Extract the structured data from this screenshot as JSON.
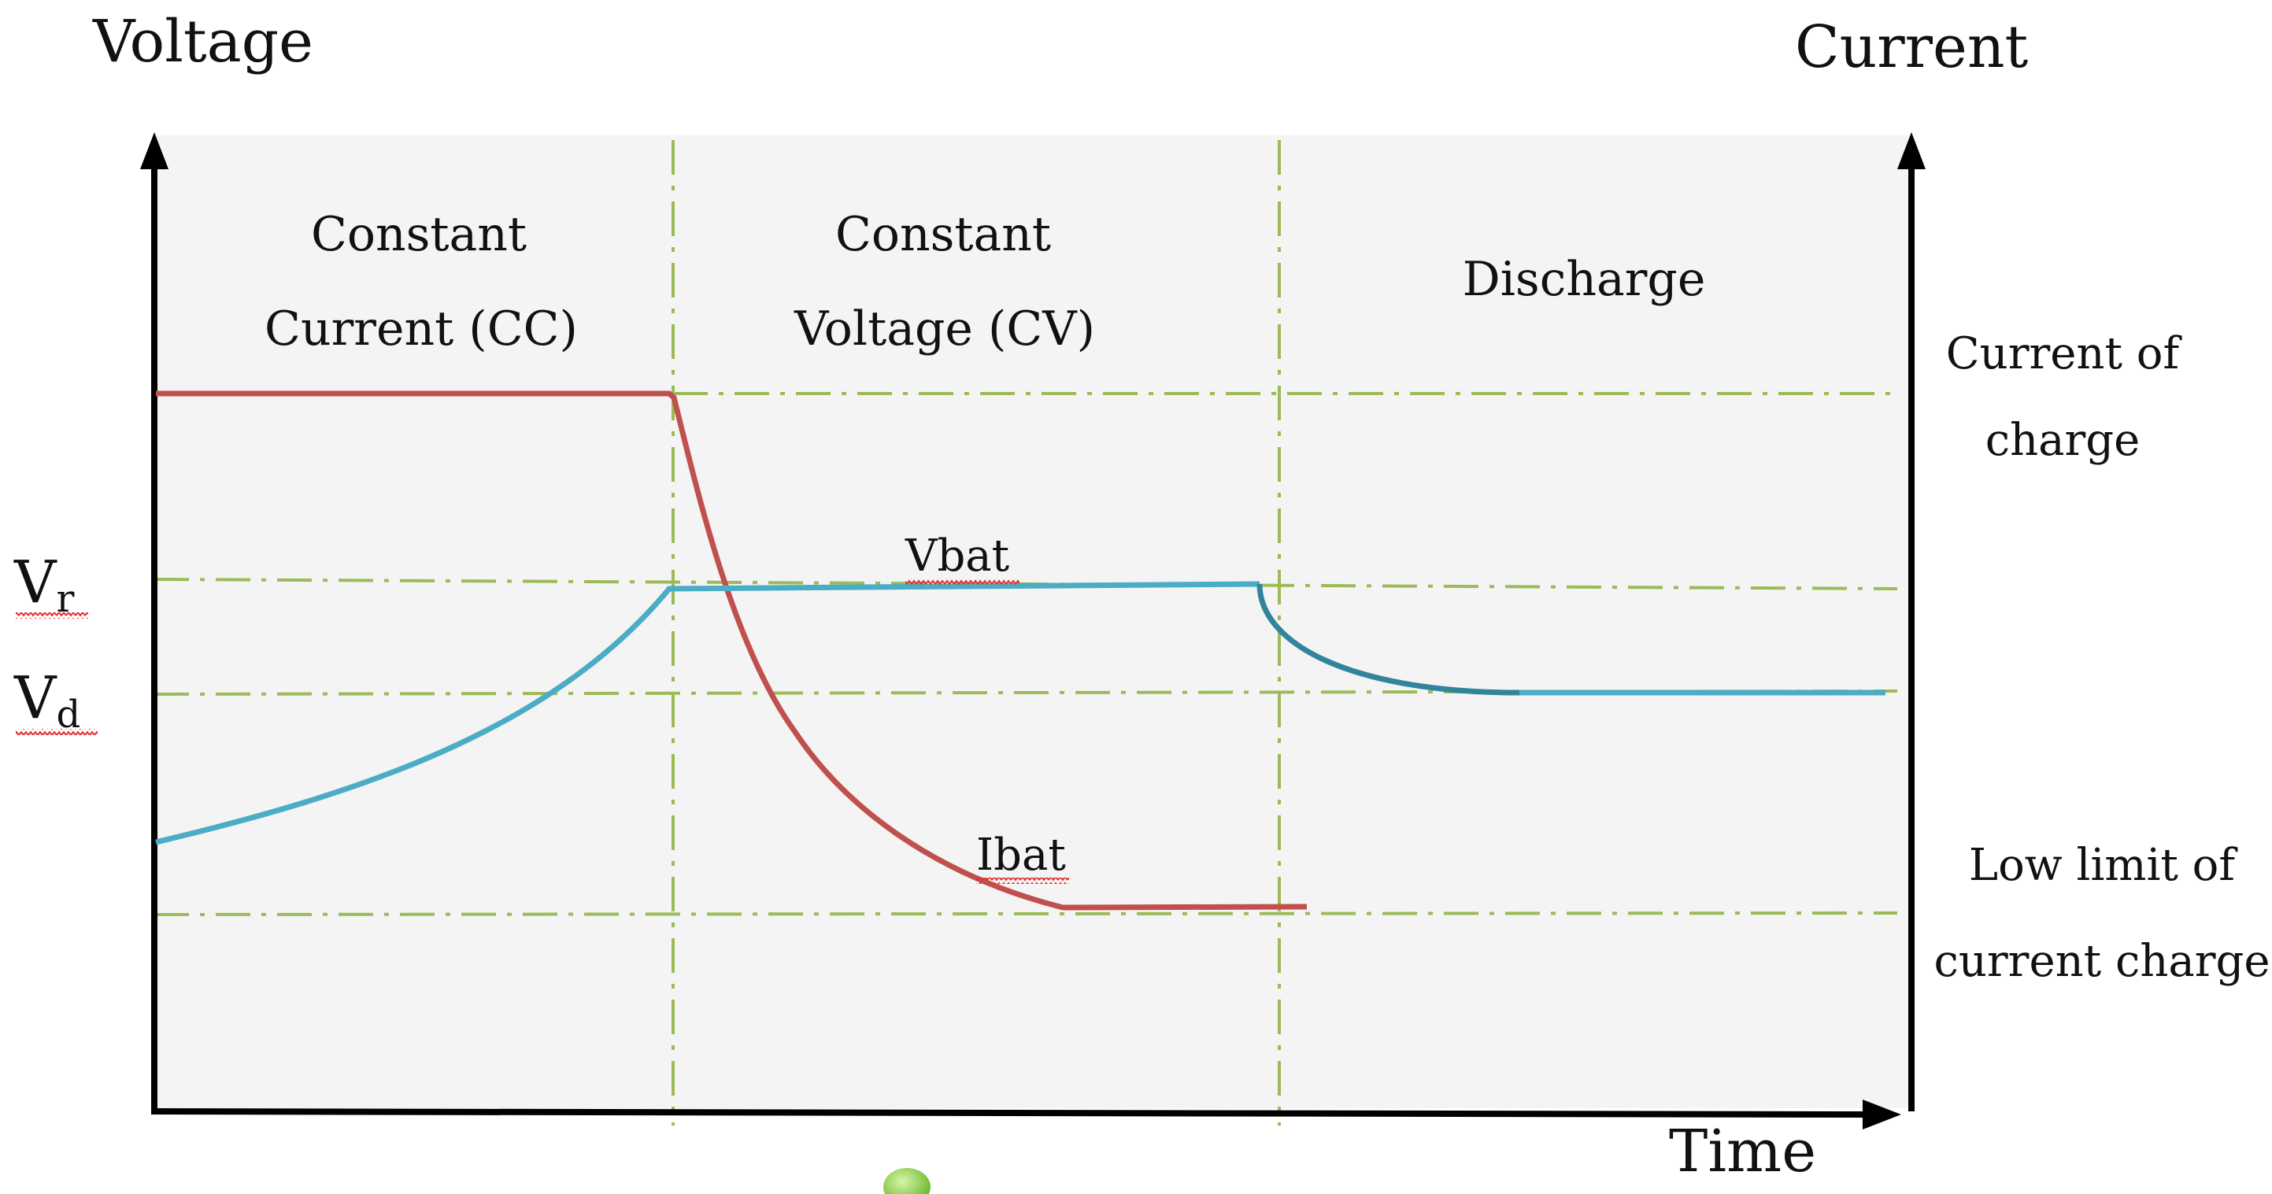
{
  "diagram": {
    "title_left_axis": "Voltage",
    "title_right_axis": "Current",
    "x_axis_label": "Time",
    "phases": {
      "cc_line1": "Constant",
      "cc_line2": "Current (CC)",
      "cv_line1": "Constant",
      "cv_line2": "Voltage (CV)",
      "discharge": "Discharge"
    },
    "left_levels": {
      "vr_main": "V",
      "vr_sub": "r",
      "vd_main": "V",
      "vd_sub": "d"
    },
    "right_levels": {
      "current_charge_line1": "Current of",
      "current_charge_line2": "charge",
      "low_limit_line1": "Low limit of",
      "low_limit_line2": "current charge"
    },
    "curves": {
      "voltage_label": "Vbat",
      "current_label": "Ibat"
    },
    "colors": {
      "voltage_curve": "#4BACC6",
      "voltage_curve_dark": "#31849B",
      "current_curve": "#C0504D",
      "guide_lines": "#9BBB59",
      "axis": "#000000",
      "plot_background": "#F4F4F4",
      "spell_squiggle": "#E03030",
      "dot": "#8ED14A"
    }
  }
}
